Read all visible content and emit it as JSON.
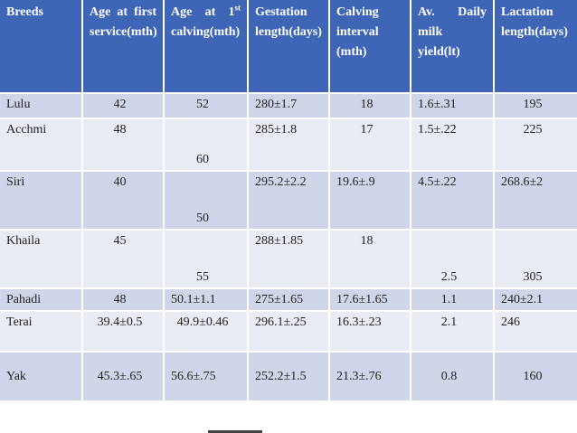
{
  "table": {
    "header": [
      "Breeds",
      "Age at first service(mth)",
      {
        "before": "Age at 1",
        "superscript": "st",
        "after": " calving(mth)"
      },
      "Gestation length(days)",
      "Calving interval (mth)",
      "Av. Daily milk yield(lt)",
      "Lactation length(days)"
    ],
    "rows": [
      [
        "Lulu",
        "42",
        "52",
        "280±1.7",
        "18",
        "1.6±.31",
        "195"
      ],
      [
        "Acchmi",
        "48",
        "60",
        "285±1.8",
        "17",
        "1.5±.22",
        "225"
      ],
      [
        "Siri",
        "40",
        "50",
        "295.2±2.2",
        "19.6±.9",
        "4.5±.22",
        "268.6±2"
      ],
      [
        "Khaila",
        "45",
        "55",
        "288±1.85",
        "18",
        "2.5",
        "305"
      ],
      [
        "Pahadi",
        "48",
        "50.1±1.1",
        "275±1.65",
        "17.6±1.65",
        "1.1",
        "240±2.1"
      ],
      [
        "Terai",
        "39.4±0.5",
        "49.9±0.46",
        "296.1±.25",
        "16.3±.23",
        "2.1",
        "246"
      ],
      [
        "Yak",
        "45.3±.65",
        "56.6±.75",
        "252.2±1.5",
        "21.3±.76",
        "0.8",
        "160"
      ]
    ]
  }
}
